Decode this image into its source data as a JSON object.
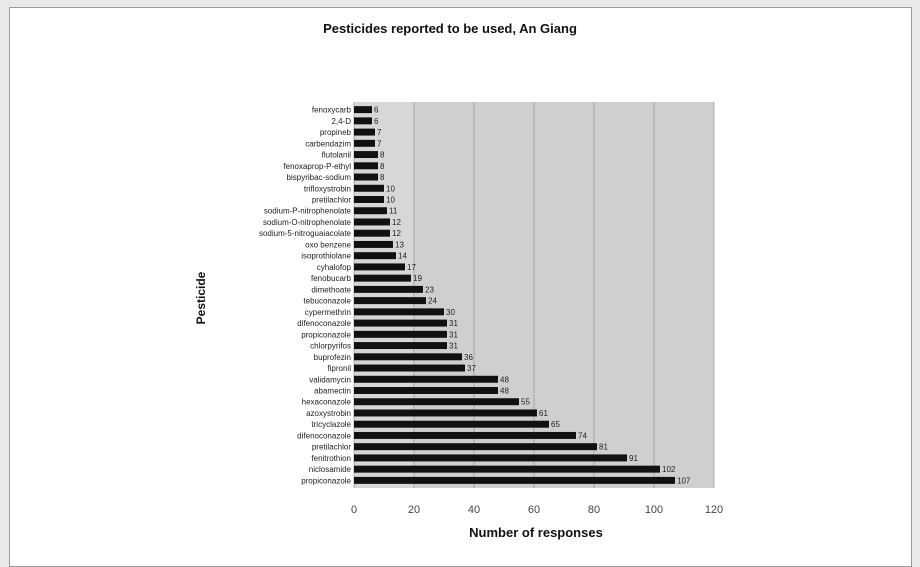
{
  "chart_data": {
    "type": "bar",
    "orientation": "horizontal",
    "title": "Pesticides reported to be used, An Giang",
    "xlabel": "Number of responses",
    "ylabel": "Pesticide",
    "xlim": [
      0,
      120
    ],
    "xticks": [
      0,
      20,
      40,
      60,
      80,
      100,
      120
    ],
    "grid": true,
    "footnote": "",
    "bar_color": "#111111",
    "panel_color": "#d7d7d7",
    "highlight_color": "#cfcfcf",
    "categories": [
      "fenoxycarb",
      "2,4-D",
      "propineb",
      "carbendazim",
      "flutolanil",
      "fenoxaprop-P-ethyl",
      "bispyribac-sodium",
      "trifloxystrobin",
      "pretilachlor",
      "sodium-P-nitrophenolate",
      "sodium-O-nitrophenolate",
      "sodium-5-nitroguaiacolate",
      "oxo benzene",
      "isoprothiolane",
      "cyhalofop",
      "fenobucarb",
      "dimethoate",
      "tebuconazole",
      "cypermethrin",
      "difenoconazole",
      "propiconazole",
      "chlorpyrifos",
      "buprofezin",
      "fipronil",
      "validamycin",
      "abamectin",
      "hexaconazole",
      "azoxystrobin",
      "tricyclazole",
      "difenoconazole",
      "pretilachlor",
      "fenitrothion",
      "niclosamide",
      "propiconazole"
    ],
    "values": [
      6,
      6,
      7,
      7,
      8,
      8,
      8,
      10,
      10,
      11,
      12,
      12,
      13,
      14,
      17,
      19,
      23,
      24,
      30,
      31,
      31,
      31,
      36,
      37,
      48,
      48,
      55,
      61,
      65,
      74,
      81,
      91,
      102,
      107
    ]
  }
}
